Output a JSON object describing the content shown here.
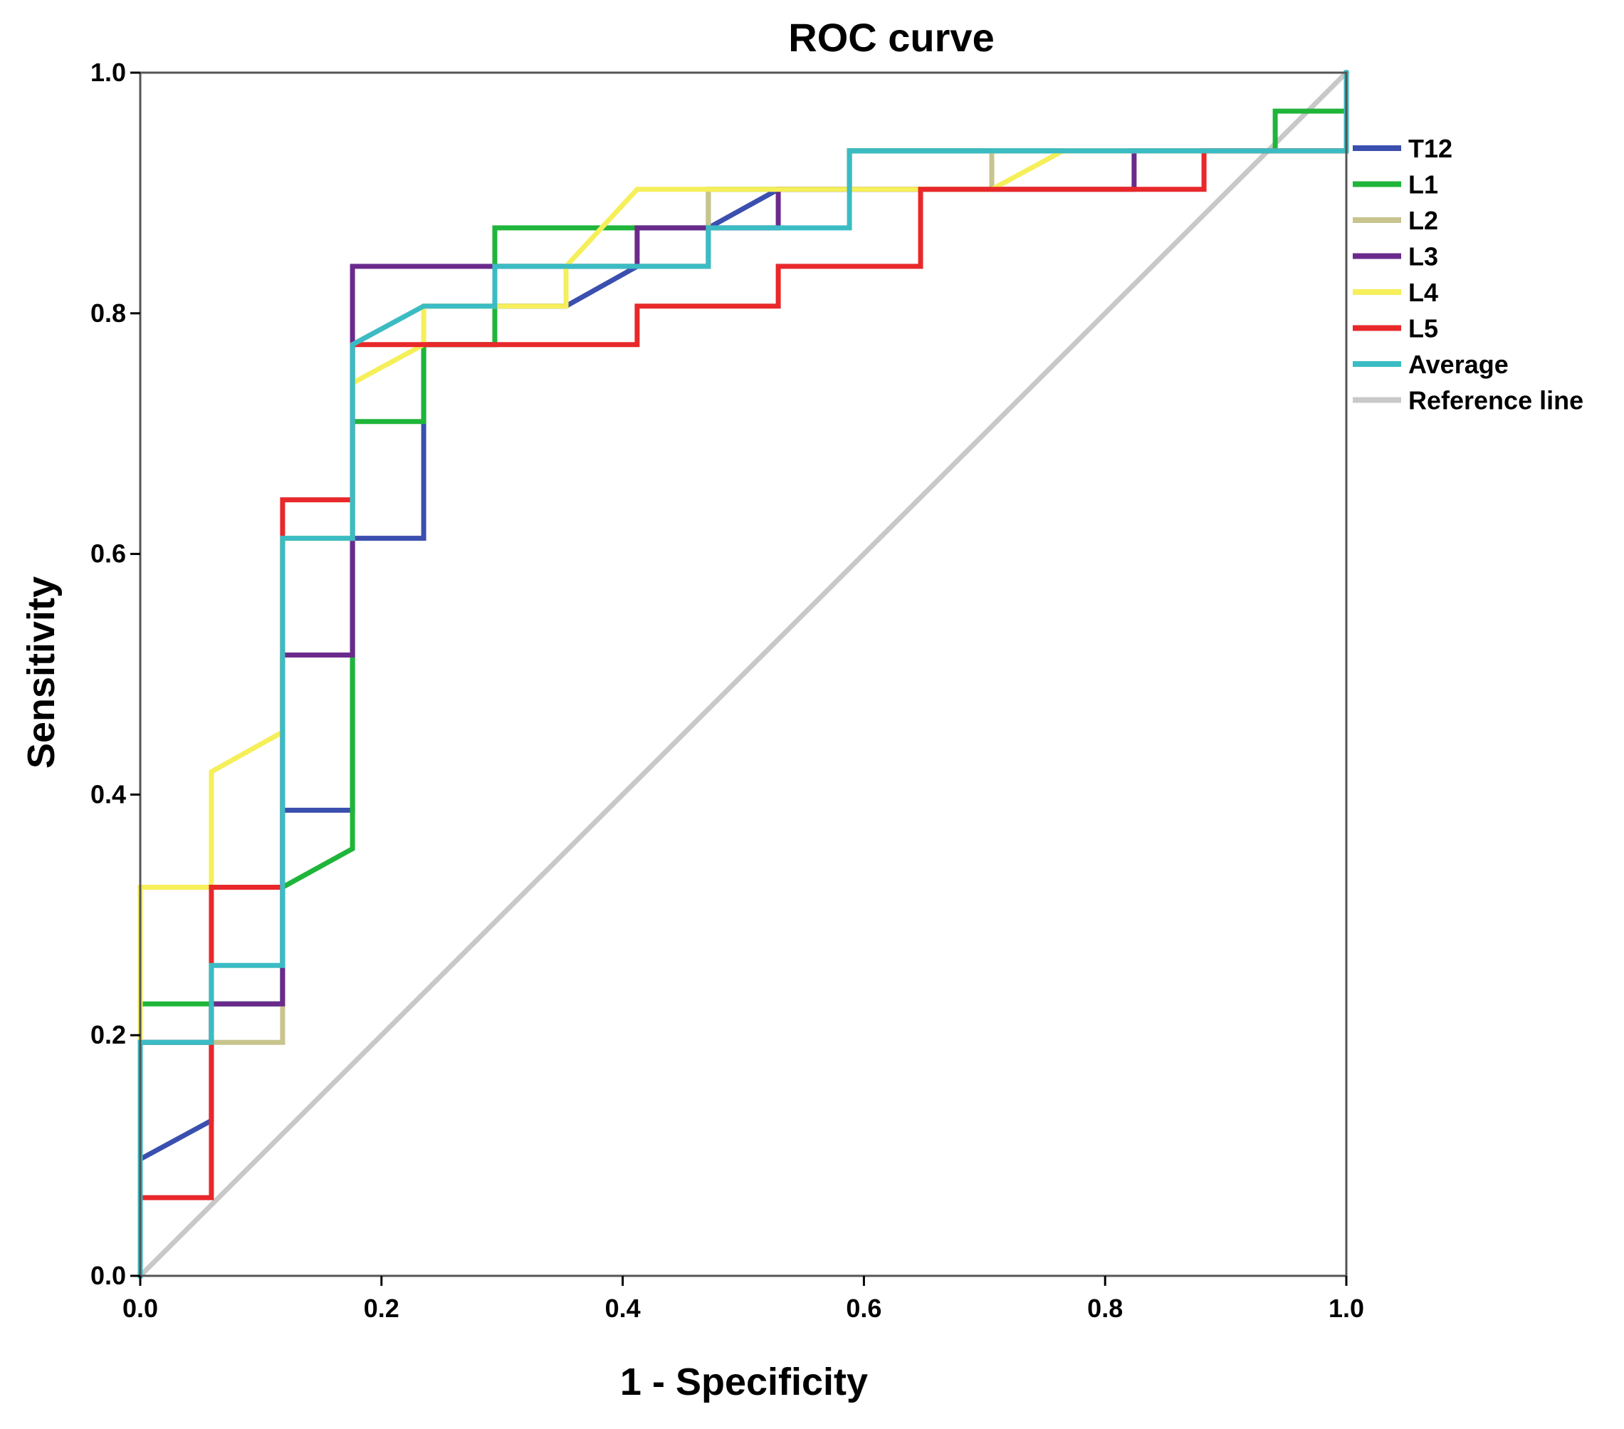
{
  "chart_data": {
    "type": "line",
    "title": "ROC curve",
    "xlabel": "1 - Specificity",
    "ylabel": "Sensitivity",
    "xlim": [
      0,
      1
    ],
    "ylim": [
      0,
      1
    ],
    "xticks": [
      "0.0",
      "0.2",
      "0.4",
      "0.6",
      "0.8",
      "1.0"
    ],
    "yticks": [
      "0.0",
      "0.2",
      "0.4",
      "0.6",
      "0.8",
      "1.0"
    ],
    "legend_position": "right",
    "series": [
      {
        "name": "T12",
        "color": "#3a4fae",
        "points": [
          [
            0,
            0
          ],
          [
            0,
            0.097
          ],
          [
            0.059,
            0.129
          ],
          [
            0.059,
            0.226
          ],
          [
            0.118,
            0.226
          ],
          [
            0.118,
            0.387
          ],
          [
            0.176,
            0.387
          ],
          [
            0.176,
            0.613
          ],
          [
            0.235,
            0.613
          ],
          [
            0.235,
            0.774
          ],
          [
            0.294,
            0.774
          ],
          [
            0.294,
            0.806
          ],
          [
            0.353,
            0.806
          ],
          [
            0.412,
            0.839
          ],
          [
            0.471,
            0.839
          ],
          [
            0.471,
            0.871
          ],
          [
            0.529,
            0.903
          ],
          [
            0.588,
            0.903
          ],
          [
            0.588,
            0.935
          ],
          [
            1,
            0.935
          ],
          [
            1,
            1
          ]
        ]
      },
      {
        "name": "L1",
        "color": "#1fb53a",
        "points": [
          [
            0,
            0
          ],
          [
            0,
            0.226
          ],
          [
            0.059,
            0.226
          ],
          [
            0.118,
            0.226
          ],
          [
            0.118,
            0.323
          ],
          [
            0.176,
            0.355
          ],
          [
            0.176,
            0.71
          ],
          [
            0.235,
            0.71
          ],
          [
            0.235,
            0.774
          ],
          [
            0.294,
            0.774
          ],
          [
            0.294,
            0.871
          ],
          [
            0.412,
            0.871
          ],
          [
            0.471,
            0.871
          ],
          [
            0.471,
            0.903
          ],
          [
            0.588,
            0.903
          ],
          [
            0.588,
            0.935
          ],
          [
            0.941,
            0.935
          ],
          [
            0.941,
            0.968
          ],
          [
            1,
            0.968
          ],
          [
            1,
            1
          ]
        ]
      },
      {
        "name": "L2",
        "color": "#c8c48e",
        "points": [
          [
            0,
            0
          ],
          [
            0,
            0.194
          ],
          [
            0.118,
            0.194
          ],
          [
            0.118,
            0.613
          ],
          [
            0.176,
            0.613
          ],
          [
            0.176,
            0.774
          ],
          [
            0.235,
            0.806
          ],
          [
            0.294,
            0.806
          ],
          [
            0.294,
            0.839
          ],
          [
            0.471,
            0.839
          ],
          [
            0.471,
            0.903
          ],
          [
            0.706,
            0.903
          ],
          [
            0.706,
            0.935
          ],
          [
            1,
            0.935
          ],
          [
            1,
            1
          ]
        ]
      },
      {
        "name": "L3",
        "color": "#6a2a8c",
        "points": [
          [
            0,
            0
          ],
          [
            0,
            0.194
          ],
          [
            0.059,
            0.194
          ],
          [
            0.059,
            0.226
          ],
          [
            0.118,
            0.226
          ],
          [
            0.118,
            0.516
          ],
          [
            0.176,
            0.516
          ],
          [
            0.176,
            0.839
          ],
          [
            0.412,
            0.839
          ],
          [
            0.412,
            0.871
          ],
          [
            0.529,
            0.871
          ],
          [
            0.529,
            0.903
          ],
          [
            0.824,
            0.903
          ],
          [
            0.824,
            0.935
          ],
          [
            1,
            0.935
          ],
          [
            1,
            1
          ]
        ]
      },
      {
        "name": "L4",
        "color": "#f5ef5a",
        "points": [
          [
            0,
            0
          ],
          [
            0,
            0.323
          ],
          [
            0.059,
            0.323
          ],
          [
            0.059,
            0.419
          ],
          [
            0.118,
            0.452
          ],
          [
            0.118,
            0.613
          ],
          [
            0.176,
            0.613
          ],
          [
            0.176,
            0.742
          ],
          [
            0.235,
            0.774
          ],
          [
            0.235,
            0.806
          ],
          [
            0.353,
            0.806
          ],
          [
            0.353,
            0.839
          ],
          [
            0.412,
            0.903
          ],
          [
            0.706,
            0.903
          ],
          [
            0.765,
            0.935
          ],
          [
            1,
            0.935
          ],
          [
            1,
            1
          ]
        ]
      },
      {
        "name": "L5",
        "color": "#e8282a",
        "points": [
          [
            0,
            0
          ],
          [
            0,
            0.065
          ],
          [
            0.059,
            0.065
          ],
          [
            0.059,
            0.323
          ],
          [
            0.118,
            0.323
          ],
          [
            0.118,
            0.645
          ],
          [
            0.176,
            0.645
          ],
          [
            0.176,
            0.774
          ],
          [
            0.412,
            0.774
          ],
          [
            0.412,
            0.806
          ],
          [
            0.529,
            0.806
          ],
          [
            0.529,
            0.839
          ],
          [
            0.647,
            0.839
          ],
          [
            0.647,
            0.903
          ],
          [
            0.882,
            0.903
          ],
          [
            0.882,
            0.935
          ],
          [
            1,
            0.935
          ],
          [
            1,
            1
          ]
        ]
      },
      {
        "name": "Average",
        "color": "#3bbcc4",
        "points": [
          [
            0,
            0
          ],
          [
            0,
            0.194
          ],
          [
            0.059,
            0.194
          ],
          [
            0.059,
            0.258
          ],
          [
            0.118,
            0.258
          ],
          [
            0.118,
            0.613
          ],
          [
            0.176,
            0.613
          ],
          [
            0.176,
            0.774
          ],
          [
            0.235,
            0.806
          ],
          [
            0.294,
            0.806
          ],
          [
            0.294,
            0.839
          ],
          [
            0.471,
            0.839
          ],
          [
            0.471,
            0.871
          ],
          [
            0.588,
            0.871
          ],
          [
            0.588,
            0.935
          ],
          [
            1,
            0.935
          ],
          [
            1,
            1
          ]
        ]
      },
      {
        "name": "Reference line",
        "color": "#c8c8c8",
        "points": [
          [
            0,
            0
          ],
          [
            1,
            1
          ]
        ]
      }
    ]
  }
}
